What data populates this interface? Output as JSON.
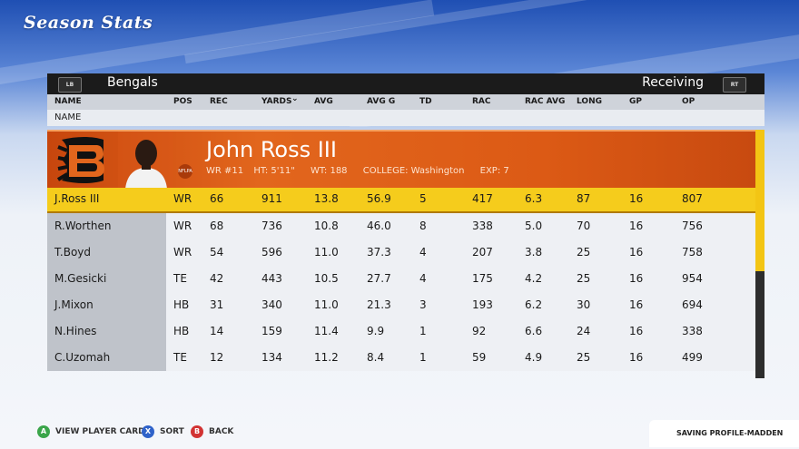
{
  "screen": {
    "title": "Season Stats"
  },
  "topbar": {
    "left_bumper": "LB",
    "team": "Bengals",
    "category": "Receiving",
    "right_bumper": "RT"
  },
  "columns": [
    "NAME",
    "POS",
    "REC",
    "YARDS",
    "AVG",
    "AVG G",
    "TD",
    "RAC",
    "RAC AVG",
    "LONG",
    "GP",
    "OP"
  ],
  "sort_column": "YARDS",
  "sort_row_label": "NAME",
  "featured": {
    "name": "John Ross III",
    "number": "WR #11",
    "height": "HT: 5'11\"",
    "weight": "WT: 188",
    "college": "COLLEGE: Washington",
    "exp": "EXP: 7",
    "badge": "NFLPA",
    "team_color": "#e2661d"
  },
  "rows": [
    {
      "name": "J.Ross III",
      "pos": "WR",
      "rec": "66",
      "yards": "911",
      "avg": "13.8",
      "avg_g": "56.9",
      "td": "5",
      "rac": "417",
      "rac_avg": "6.3",
      "long": "87",
      "gp": "16",
      "op": "807"
    },
    {
      "name": "R.Worthen",
      "pos": "WR",
      "rec": "68",
      "yards": "736",
      "avg": "10.8",
      "avg_g": "46.0",
      "td": "8",
      "rac": "338",
      "rac_avg": "5.0",
      "long": "70",
      "gp": "16",
      "op": "756"
    },
    {
      "name": "T.Boyd",
      "pos": "WR",
      "rec": "54",
      "yards": "596",
      "avg": "11.0",
      "avg_g": "37.3",
      "td": "4",
      "rac": "207",
      "rac_avg": "3.8",
      "long": "25",
      "gp": "16",
      "op": "758"
    },
    {
      "name": "M.Gesicki",
      "pos": "TE",
      "rec": "42",
      "yards": "443",
      "avg": "10.5",
      "avg_g": "27.7",
      "td": "4",
      "rac": "175",
      "rac_avg": "4.2",
      "long": "25",
      "gp": "16",
      "op": "954"
    },
    {
      "name": "J.Mixon",
      "pos": "HB",
      "rec": "31",
      "yards": "340",
      "avg": "11.0",
      "avg_g": "21.3",
      "td": "3",
      "rac": "193",
      "rac_avg": "6.2",
      "long": "30",
      "gp": "16",
      "op": "694"
    },
    {
      "name": "N.Hines",
      "pos": "HB",
      "rec": "14",
      "yards": "159",
      "avg": "11.4",
      "avg_g": "9.9",
      "td": "1",
      "rac": "92",
      "rac_avg": "6.6",
      "long": "24",
      "gp": "16",
      "op": "338"
    },
    {
      "name": "C.Uzomah",
      "pos": "TE",
      "rec": "12",
      "yards": "134",
      "avg": "11.2",
      "avg_g": "8.4",
      "td": "1",
      "rac": "59",
      "rac_avg": "4.9",
      "long": "25",
      "gp": "16",
      "op": "499"
    }
  ],
  "footer": {
    "a": {
      "glyph": "A",
      "label": "VIEW PLAYER CARD",
      "color": "#3aa54a"
    },
    "x": {
      "glyph": "X",
      "label": "SORT",
      "color": "#2f62c9"
    },
    "b": {
      "glyph": "B",
      "label": "BACK",
      "color": "#d23333"
    },
    "status": "SAVING PROFILE-MADDEN"
  },
  "scroll_fraction_visible": 0.57
}
